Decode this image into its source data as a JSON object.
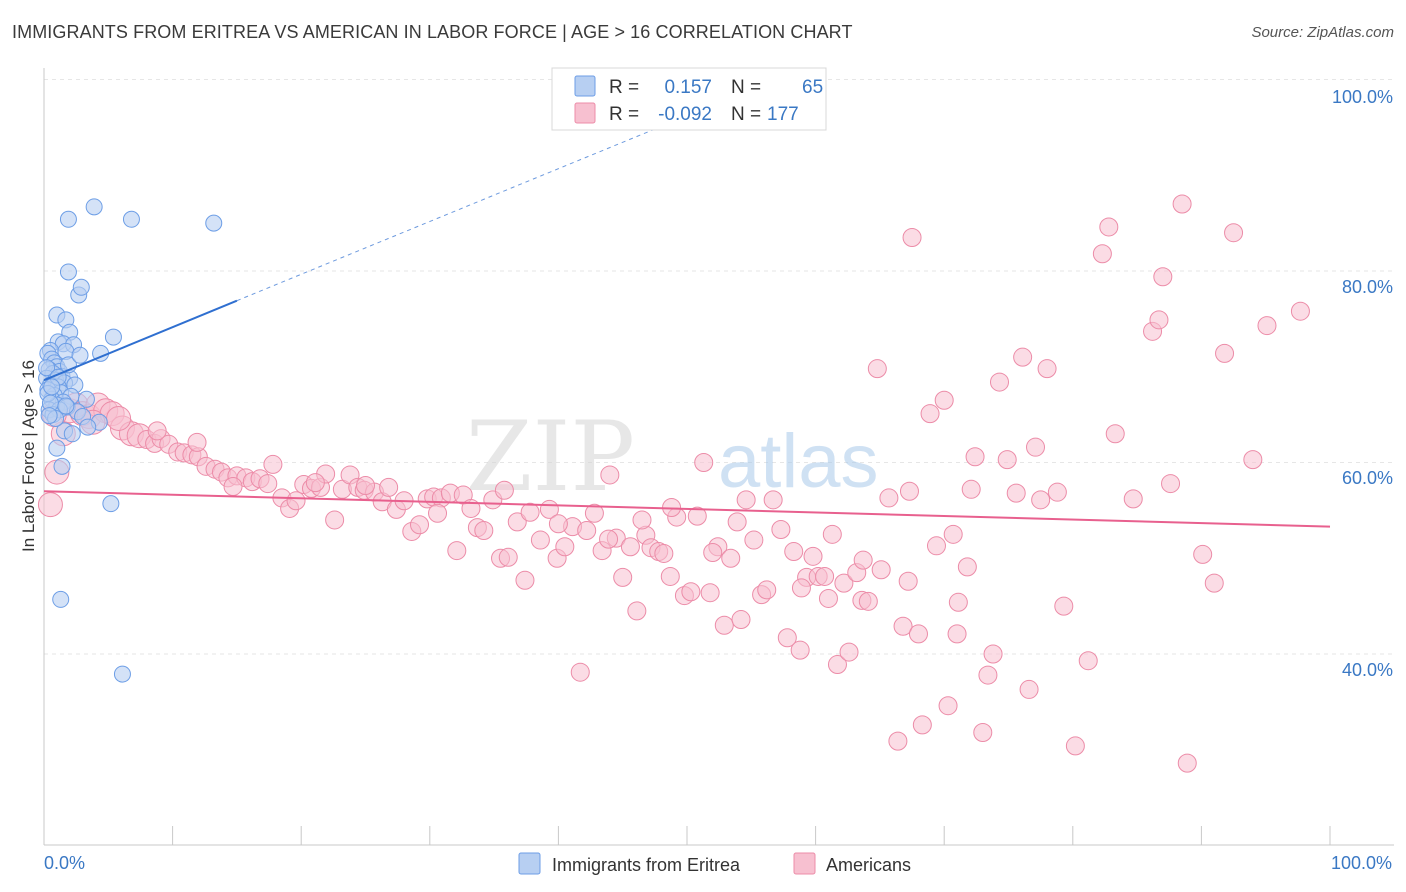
{
  "title": "IMMIGRANTS FROM ERITREA VS AMERICAN IN LABOR FORCE | AGE > 16 CORRELATION CHART",
  "source": "Source: ZipAtlas.com",
  "watermark": {
    "zip": "ZIP",
    "atlas": "atlas"
  },
  "colors": {
    "blue_fill": "#b7cff2",
    "blue_stroke": "#6d9ee6",
    "blue_line": "#2f6fd0",
    "pink_fill": "#f7c0d0",
    "pink_stroke": "#ec8ca8",
    "pink_line": "#e8608e",
    "axis_label": "#3a78c4",
    "grid": "#e6e6e6"
  },
  "legend": {
    "rows": [
      {
        "r_label": "R =",
        "r_value": "0.157",
        "n_label": "N =",
        "n_value": "65"
      },
      {
        "r_label": "R =",
        "r_value": "-0.092",
        "n_label": "N =",
        "n_value": "177"
      }
    ]
  },
  "bottom_legend": [
    "Immigrants from Eritrea",
    "Americans"
  ],
  "chart_data": {
    "type": "scatter",
    "title": "IMMIGRANTS FROM ERITREA VS AMERICAN IN LABOR FORCE | AGE > 16 CORRELATION CHART",
    "xlabel": "",
    "ylabel": "In Labor Force | Age > 16",
    "xlim": [
      0,
      100
    ],
    "ylim": [
      20,
      102
    ],
    "x_tick_labels": [
      "0.0%",
      "100.0%"
    ],
    "y_tick_labels": [
      "40.0%",
      "60.0%",
      "80.0%",
      "100.0%"
    ],
    "y_ticks": [
      40,
      60,
      80,
      100
    ],
    "grid": true,
    "legend_position": "top-center",
    "series": [
      {
        "name": "Immigrants from Eritrea",
        "R": 0.157,
        "N": 65,
        "trend": {
          "x": [
            0,
            15
          ],
          "y": [
            68.6,
            76.9
          ],
          "dashed_to": [
            50,
            96.2
          ]
        },
        "points": [
          [
            1.9,
            85.4
          ],
          [
            3.9,
            86.7
          ],
          [
            6.8,
            85.4
          ],
          [
            13.2,
            85.0
          ],
          [
            1.9,
            79.9
          ],
          [
            2.7,
            77.5
          ],
          [
            2.9,
            78.3
          ],
          [
            1.0,
            75.4
          ],
          [
            1.7,
            74.9
          ],
          [
            2.0,
            73.6
          ],
          [
            5.4,
            73.1
          ],
          [
            1.1,
            72.6
          ],
          [
            1.5,
            72.4
          ],
          [
            2.3,
            72.3
          ],
          [
            0.5,
            71.7
          ],
          [
            1.7,
            71.6
          ],
          [
            4.4,
            71.4
          ],
          [
            0.3,
            71.4
          ],
          [
            0.6,
            70.8
          ],
          [
            0.8,
            70.4
          ],
          [
            1.0,
            70.0
          ],
          [
            0.4,
            69.7
          ],
          [
            1.2,
            69.5
          ],
          [
            0.7,
            69.3
          ],
          [
            1.4,
            69.0
          ],
          [
            2.0,
            68.8
          ],
          [
            0.2,
            68.8
          ],
          [
            0.9,
            68.6
          ],
          [
            1.6,
            68.3
          ],
          [
            0.5,
            68.1
          ],
          [
            2.4,
            68.1
          ],
          [
            1.1,
            67.9
          ],
          [
            0.3,
            67.6
          ],
          [
            1.3,
            67.3
          ],
          [
            0.8,
            67.0
          ],
          [
            2.1,
            66.9
          ],
          [
            3.3,
            66.6
          ],
          [
            0.6,
            66.6
          ],
          [
            1.5,
            66.3
          ],
          [
            1.0,
            66.0
          ],
          [
            1.8,
            65.8
          ],
          [
            0.4,
            65.5
          ],
          [
            1.2,
            65.5
          ],
          [
            2.6,
            65.3
          ],
          [
            0.7,
            65.0
          ],
          [
            3.0,
            64.8
          ],
          [
            4.3,
            64.2
          ],
          [
            3.4,
            63.7
          ],
          [
            1.6,
            63.3
          ],
          [
            1.0,
            61.5
          ],
          [
            1.4,
            59.6
          ],
          [
            5.2,
            55.7
          ],
          [
            1.3,
            45.7
          ],
          [
            6.1,
            37.9
          ],
          [
            0.3,
            67.2
          ],
          [
            0.9,
            64.6
          ],
          [
            2.2,
            63.0
          ],
          [
            0.5,
            66.2
          ],
          [
            1.9,
            70.2
          ],
          [
            0.2,
            69.9
          ],
          [
            1.1,
            68.9
          ],
          [
            0.6,
            67.9
          ],
          [
            1.7,
            65.9
          ],
          [
            0.4,
            64.9
          ],
          [
            2.8,
            71.2
          ]
        ]
      },
      {
        "name": "Americans",
        "R": -0.092,
        "N": 177,
        "trend": {
          "x": [
            0,
            100
          ],
          "y": [
            57.0,
            53.3
          ]
        },
        "points": [
          [
            0.5,
            55.6
          ],
          [
            1.0,
            59.0
          ],
          [
            1.5,
            63.0
          ],
          [
            2.0,
            65.4
          ],
          [
            2.5,
            66.0
          ],
          [
            3.0,
            65.1
          ],
          [
            3.5,
            64.8
          ],
          [
            4.2,
            66.0
          ],
          [
            4.8,
            65.4
          ],
          [
            5.3,
            65.1
          ],
          [
            6.1,
            63.6
          ],
          [
            6.8,
            63.0
          ],
          [
            7.4,
            62.8
          ],
          [
            8.0,
            62.4
          ],
          [
            8.6,
            62.0
          ],
          [
            9.1,
            62.5
          ],
          [
            9.7,
            61.9
          ],
          [
            10.4,
            61.1
          ],
          [
            10.9,
            61.0
          ],
          [
            11.5,
            60.8
          ],
          [
            12.0,
            60.6
          ],
          [
            12.6,
            59.6
          ],
          [
            13.3,
            59.3
          ],
          [
            13.8,
            59.0
          ],
          [
            14.3,
            58.4
          ],
          [
            15.0,
            58.6
          ],
          [
            15.7,
            58.4
          ],
          [
            16.2,
            58.0
          ],
          [
            16.8,
            58.3
          ],
          [
            17.4,
            57.8
          ],
          [
            17.8,
            59.8
          ],
          [
            18.5,
            56.3
          ],
          [
            19.1,
            55.2
          ],
          [
            19.6,
            56.0
          ],
          [
            20.2,
            57.7
          ],
          [
            20.8,
            57.3
          ],
          [
            21.5,
            57.4
          ],
          [
            21.9,
            58.8
          ],
          [
            22.6,
            54.0
          ],
          [
            23.2,
            57.2
          ],
          [
            23.8,
            58.7
          ],
          [
            24.4,
            57.4
          ],
          [
            24.9,
            57.1
          ],
          [
            25.7,
            56.9
          ],
          [
            26.3,
            55.9
          ],
          [
            26.8,
            57.4
          ],
          [
            27.4,
            55.1
          ],
          [
            28.0,
            56.0
          ],
          [
            28.6,
            52.8
          ],
          [
            29.2,
            53.5
          ],
          [
            29.8,
            56.2
          ],
          [
            30.3,
            56.4
          ],
          [
            30.9,
            56.3
          ],
          [
            31.6,
            56.8
          ],
          [
            32.1,
            50.8
          ],
          [
            32.6,
            56.6
          ],
          [
            33.2,
            55.2
          ],
          [
            33.7,
            53.2
          ],
          [
            34.2,
            52.9
          ],
          [
            34.9,
            56.1
          ],
          [
            35.5,
            50.0
          ],
          [
            36.1,
            50.1
          ],
          [
            36.8,
            53.8
          ],
          [
            37.4,
            47.7
          ],
          [
            37.8,
            54.8
          ],
          [
            38.6,
            51.9
          ],
          [
            39.3,
            55.1
          ],
          [
            39.9,
            50.0
          ],
          [
            40.5,
            51.2
          ],
          [
            41.1,
            53.3
          ],
          [
            41.7,
            38.1
          ],
          [
            42.2,
            52.9
          ],
          [
            42.8,
            54.7
          ],
          [
            43.4,
            50.8
          ],
          [
            44.0,
            58.7
          ],
          [
            44.5,
            52.1
          ],
          [
            45.0,
            48.0
          ],
          [
            45.6,
            51.2
          ],
          [
            46.1,
            44.5
          ],
          [
            46.8,
            52.4
          ],
          [
            47.2,
            51.1
          ],
          [
            47.8,
            50.7
          ],
          [
            48.2,
            50.5
          ],
          [
            48.7,
            48.1
          ],
          [
            49.2,
            54.3
          ],
          [
            49.8,
            46.1
          ],
          [
            50.3,
            46.5
          ],
          [
            50.8,
            54.4
          ],
          [
            51.3,
            60.0
          ],
          [
            51.8,
            46.4
          ],
          [
            52.4,
            51.2
          ],
          [
            52.9,
            43.0
          ],
          [
            53.4,
            50.0
          ],
          [
            53.9,
            53.8
          ],
          [
            54.6,
            56.1
          ],
          [
            55.2,
            51.9
          ],
          [
            55.8,
            46.2
          ],
          [
            56.2,
            46.7
          ],
          [
            56.7,
            56.1
          ],
          [
            57.3,
            53.0
          ],
          [
            57.8,
            41.7
          ],
          [
            58.3,
            50.7
          ],
          [
            58.8,
            40.4
          ],
          [
            59.3,
            48.0
          ],
          [
            59.8,
            50.2
          ],
          [
            60.2,
            48.1
          ],
          [
            60.7,
            48.1
          ],
          [
            61.3,
            52.5
          ],
          [
            61.7,
            38.9
          ],
          [
            62.2,
            47.4
          ],
          [
            62.6,
            40.2
          ],
          [
            63.2,
            48.5
          ],
          [
            63.6,
            45.6
          ],
          [
            64.1,
            45.5
          ],
          [
            64.8,
            69.8
          ],
          [
            65.1,
            48.8
          ],
          [
            65.7,
            56.3
          ],
          [
            66.4,
            30.9
          ],
          [
            66.8,
            42.9
          ],
          [
            67.2,
            47.6
          ],
          [
            67.5,
            83.5
          ],
          [
            68.0,
            42.1
          ],
          [
            68.3,
            32.6
          ],
          [
            68.9,
            65.1
          ],
          [
            69.4,
            51.3
          ],
          [
            70.0,
            66.5
          ],
          [
            70.3,
            34.6
          ],
          [
            71.0,
            42.1
          ],
          [
            71.1,
            45.4
          ],
          [
            71.8,
            49.1
          ],
          [
            72.4,
            60.6
          ],
          [
            73.0,
            31.8
          ],
          [
            73.4,
            37.8
          ],
          [
            73.8,
            40.0
          ],
          [
            74.3,
            68.4
          ],
          [
            74.9,
            60.3
          ],
          [
            75.6,
            56.8
          ],
          [
            76.1,
            71.0
          ],
          [
            76.6,
            36.3
          ],
          [
            77.1,
            61.6
          ],
          [
            77.5,
            56.1
          ],
          [
            78.0,
            69.8
          ],
          [
            78.8,
            56.9
          ],
          [
            79.3,
            45.0
          ],
          [
            80.2,
            30.4
          ],
          [
            81.2,
            39.3
          ],
          [
            82.3,
            81.8
          ],
          [
            82.8,
            84.6
          ],
          [
            83.3,
            63.0
          ],
          [
            84.7,
            56.2
          ],
          [
            86.2,
            73.7
          ],
          [
            86.7,
            74.9
          ],
          [
            87.0,
            79.4
          ],
          [
            87.6,
            57.8
          ],
          [
            88.5,
            87.0
          ],
          [
            88.9,
            28.6
          ],
          [
            90.1,
            50.4
          ],
          [
            91.0,
            47.4
          ],
          [
            91.8,
            71.4
          ],
          [
            92.5,
            84.0
          ],
          [
            94.0,
            60.3
          ],
          [
            95.1,
            74.3
          ],
          [
            97.7,
            75.8
          ],
          [
            3.8,
            64.2
          ],
          [
            5.8,
            64.6
          ],
          [
            8.8,
            63.3
          ],
          [
            11.9,
            62.1
          ],
          [
            14.7,
            57.5
          ],
          [
            21.1,
            57.9
          ],
          [
            25.0,
            57.6
          ],
          [
            30.6,
            54.7
          ],
          [
            35.8,
            57.1
          ],
          [
            40.0,
            53.6
          ],
          [
            43.9,
            52.0
          ],
          [
            46.5,
            54.0
          ],
          [
            52.0,
            50.6
          ],
          [
            54.2,
            43.6
          ],
          [
            58.9,
            46.9
          ],
          [
            61.0,
            45.8
          ],
          [
            63.7,
            49.8
          ],
          [
            70.7,
            52.5
          ],
          [
            72.1,
            57.2
          ],
          [
            67.3,
            57.0
          ],
          [
            48.8,
            55.3
          ],
          [
            0.8,
            65.0
          ]
        ]
      }
    ]
  }
}
